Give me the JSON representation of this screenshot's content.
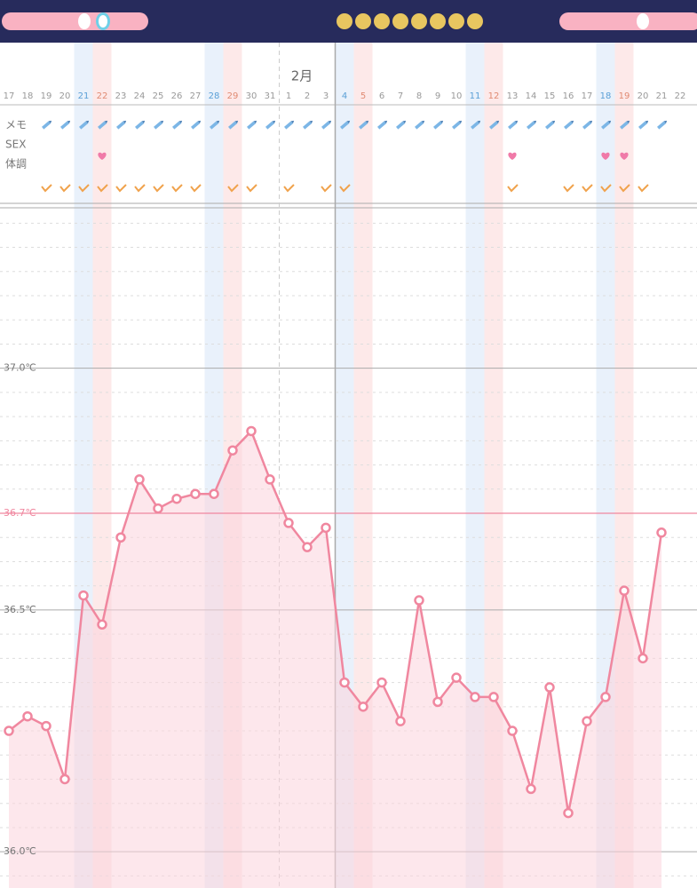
{
  "chart_data": {
    "type": "line",
    "month_label": "2月",
    "row_labels": [
      "メモ",
      "SEX",
      "体調"
    ],
    "categories": [
      "17",
      "18",
      "19",
      "20",
      "21",
      "22",
      "23",
      "24",
      "25",
      "26",
      "27",
      "28",
      "29",
      "30",
      "31",
      "1",
      "2",
      "3",
      "4",
      "5",
      "6",
      "7",
      "8",
      "9",
      "10",
      "11",
      "12",
      "13",
      "14",
      "15",
      "16",
      "17",
      "18",
      "19",
      "20",
      "21",
      "22"
    ],
    "month_start_index": 15,
    "cycle_start_index": 18,
    "series": [
      {
        "color": "#f0879f",
        "values": [
          36.25,
          36.28,
          36.26,
          36.15,
          36.53,
          36.47,
          36.65,
          36.77,
          36.71,
          36.73,
          36.74,
          36.74,
          36.83,
          36.87,
          36.77,
          36.68,
          36.63,
          36.67,
          36.35,
          36.3,
          36.35,
          36.27,
          36.52,
          36.31,
          36.36,
          36.32,
          36.32,
          36.25,
          36.13,
          36.34,
          36.08,
          36.27,
          36.32,
          36.54,
          36.4,
          36.66,
          null
        ]
      }
    ],
    "ylim": [
      35.925,
      37.33
    ],
    "yticks": [
      {
        "value": 36.0,
        "label": "36.0℃"
      },
      {
        "value": 36.5,
        "label": "36.5℃"
      },
      {
        "value": 37.0,
        "label": "37.0℃"
      }
    ],
    "minor_yticks": [
      35.95,
      36.05,
      36.1,
      36.15,
      36.2,
      36.25,
      36.3,
      36.35,
      36.4,
      36.45,
      36.55,
      36.6,
      36.65,
      36.7,
      36.75,
      36.8,
      36.85,
      36.9,
      36.95,
      37.05,
      37.1,
      37.15,
      37.2,
      37.25,
      37.3
    ],
    "cover_line": {
      "value": 36.7,
      "label": "36.7℃",
      "color": "#f0879f"
    },
    "bands": {
      "blue": [
        4,
        11,
        18,
        25,
        32
      ],
      "pink": [
        5,
        12,
        19,
        26,
        33
      ]
    },
    "memo_days": [
      2,
      3,
      4,
      5,
      6,
      7,
      8,
      9,
      10,
      11,
      12,
      13,
      14,
      15,
      16,
      17,
      18,
      19,
      20,
      21,
      22,
      23,
      24,
      25,
      26,
      27,
      28,
      29,
      30,
      31,
      32,
      33,
      34,
      35
    ],
    "sex_days": [
      5,
      27,
      32,
      33
    ],
    "condition_days": [
      2,
      3,
      4,
      5,
      6,
      7,
      8,
      9,
      10,
      12,
      13,
      15,
      17,
      18,
      27,
      30,
      31,
      32,
      33,
      34
    ]
  }
}
